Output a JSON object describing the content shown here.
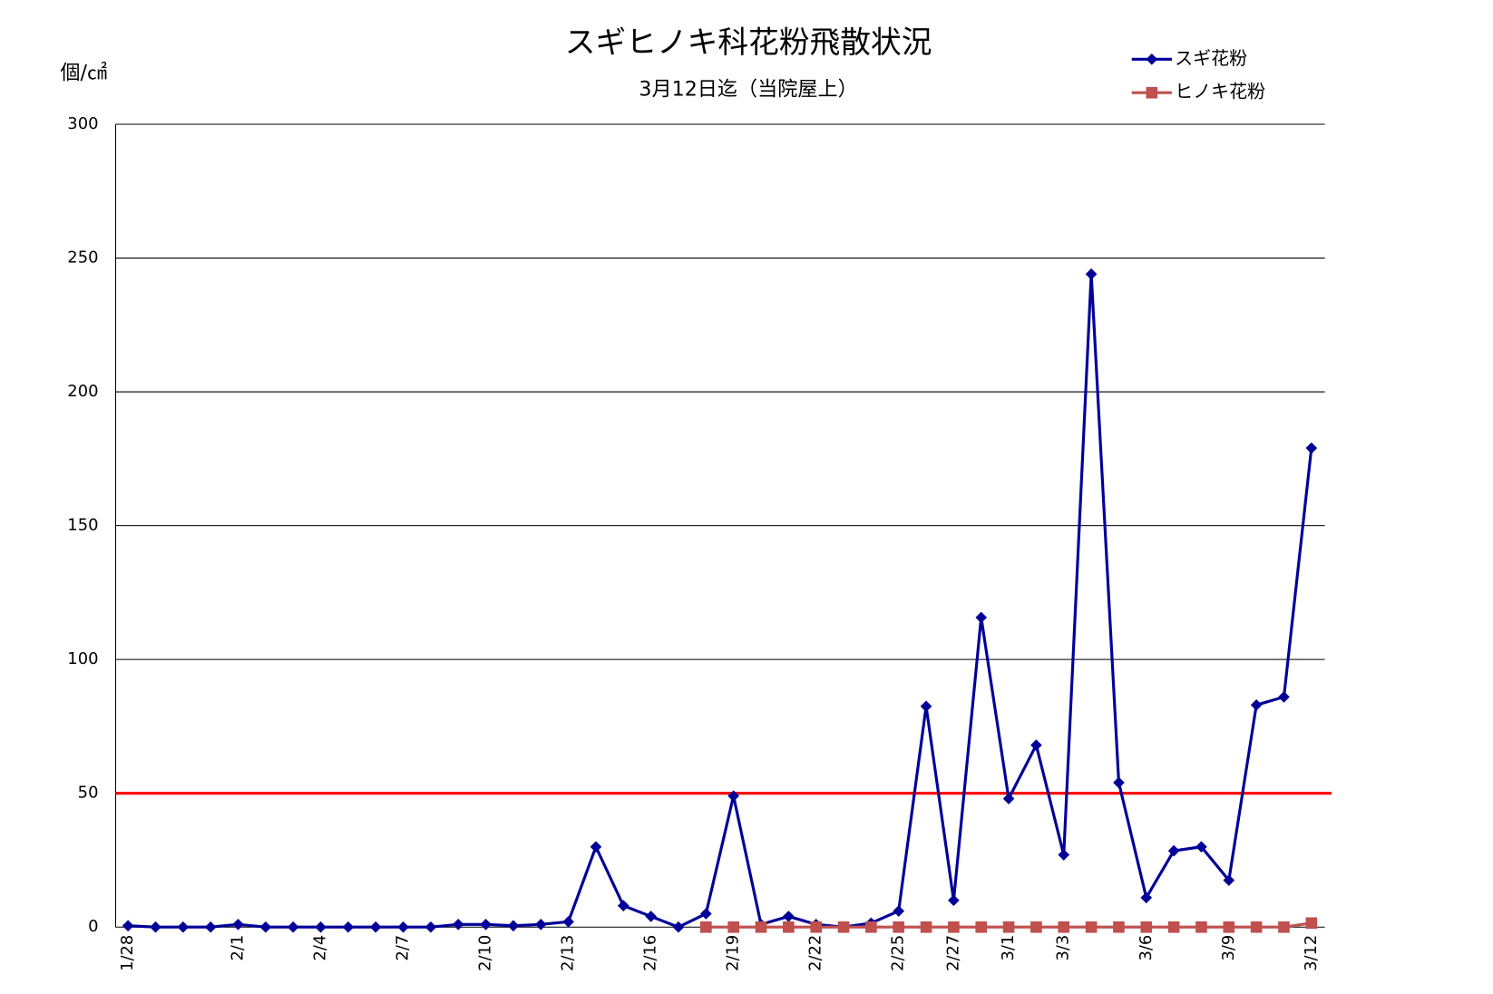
{
  "chart_data": {
    "type": "line",
    "title": "スギヒノキ科花粉飛散状況",
    "subtitle": "3月12日迄（当院屋上）",
    "y_axis_label": "個/㎠",
    "categories": [
      "1/28",
      null,
      null,
      null,
      "2/1",
      null,
      null,
      "2/4",
      null,
      null,
      "2/7",
      null,
      null,
      "2/10",
      null,
      null,
      "2/13",
      null,
      null,
      "2/16",
      null,
      null,
      "2/19",
      null,
      null,
      "2/22",
      null,
      null,
      "2/25",
      null,
      "2/27",
      null,
      "3/1",
      null,
      "3/3",
      null,
      null,
      "3/6",
      null,
      null,
      "3/9",
      null,
      null,
      "3/12"
    ],
    "series": [
      {
        "name": "スギ花粉",
        "color": "#000099",
        "marker": "diamond",
        "values": [
          0.5,
          0,
          0,
          0,
          1,
          0,
          0,
          0,
          0,
          0,
          0,
          0,
          1,
          1,
          0.5,
          1,
          2,
          30,
          8,
          4,
          0,
          5,
          49,
          1,
          4,
          1,
          0,
          1.5,
          6,
          82.5,
          10,
          115.7,
          48,
          68,
          27,
          244,
          54,
          11,
          28.5,
          30,
          17.5,
          83,
          86,
          179
        ]
      },
      {
        "name": "ヒノキ花粉",
        "color": "#c0504d",
        "marker": "square",
        "values": [
          null,
          null,
          null,
          null,
          null,
          null,
          null,
          null,
          null,
          null,
          null,
          null,
          null,
          null,
          null,
          null,
          null,
          null,
          null,
          null,
          null,
          0,
          0,
          0,
          0,
          0,
          0,
          0,
          0,
          0,
          0,
          0,
          0,
          0,
          0,
          0,
          0,
          0,
          0,
          0,
          0,
          0,
          0,
          1.5
        ]
      }
    ],
    "reference_line": {
      "value": 50,
      "color": "#ff0000"
    },
    "ylim": [
      0,
      300
    ],
    "yticks": [
      0,
      50,
      100,
      150,
      200,
      250,
      300
    ],
    "grid": true,
    "legend": "top-right"
  }
}
